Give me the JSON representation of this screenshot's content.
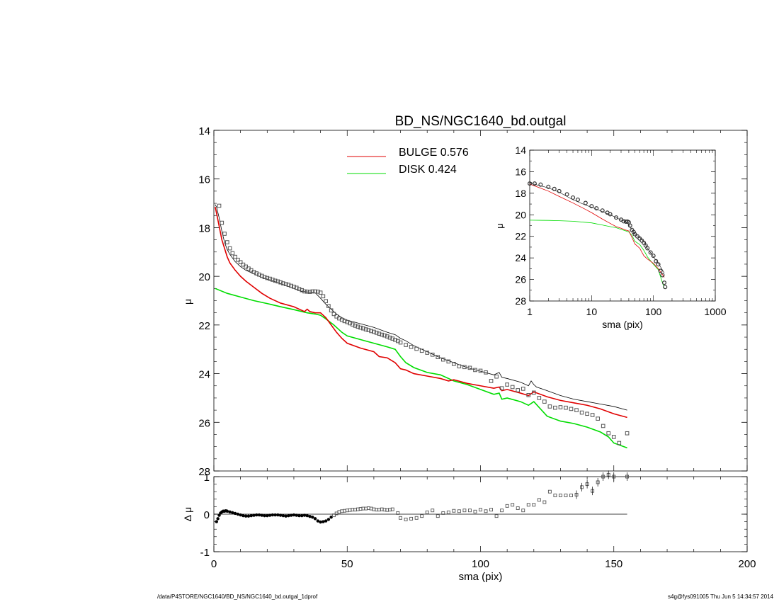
{
  "chart_data": [
    {
      "panel": "main",
      "type": "line",
      "title": "BD_NS/NGC1640_bd.outgal",
      "ylabel": "μ",
      "xlim": [
        0,
        200
      ],
      "ylim": [
        28,
        14
      ],
      "xticks": [
        "0",
        "50",
        "100",
        "150",
        "200"
      ],
      "yticks": [
        "14",
        "16",
        "18",
        "20",
        "22",
        "24",
        "26",
        "28"
      ],
      "legend": {
        "placement": "top-center",
        "entries": [
          {
            "label": "BULGE  0.576",
            "color": "#e00000"
          },
          {
            "label": "DISK  0.424",
            "color": "#00dd00"
          }
        ]
      },
      "series": [
        {
          "name": "data",
          "marker": "square",
          "color": "#000000",
          "x": [
            2,
            3,
            4,
            5,
            6,
            7,
            8,
            9,
            10,
            11,
            12,
            13,
            14,
            15,
            16,
            17,
            18,
            19,
            20,
            21,
            22,
            23,
            24,
            25,
            26,
            27,
            28,
            29,
            30,
            31,
            32,
            33,
            34,
            35,
            36,
            37,
            38,
            39,
            40,
            41,
            42,
            43,
            44,
            45,
            46,
            47,
            48,
            49,
            50,
            51,
            52,
            53,
            54,
            55,
            56,
            57,
            58,
            59,
            60,
            61,
            62,
            63,
            64,
            65,
            66,
            67,
            68,
            69,
            70,
            72,
            74,
            76,
            78,
            80,
            82,
            84,
            86,
            88,
            90,
            92,
            94,
            96,
            98,
            100,
            102,
            104,
            106,
            108,
            110,
            112,
            114,
            116,
            118,
            120,
            122,
            124,
            126,
            128,
            130,
            132,
            134,
            136,
            138,
            140,
            142,
            144,
            146,
            148,
            150,
            152,
            155
          ],
          "y": [
            17.1,
            17.8,
            18.25,
            18.6,
            18.85,
            19.05,
            19.2,
            19.32,
            19.42,
            19.52,
            19.6,
            19.68,
            19.75,
            19.82,
            19.88,
            19.93,
            19.98,
            20.03,
            20.07,
            20.1,
            20.14,
            20.18,
            20.21,
            20.25,
            20.29,
            20.32,
            20.35,
            20.39,
            20.43,
            20.47,
            20.52,
            20.57,
            20.62,
            20.63,
            20.64,
            20.62,
            20.62,
            20.63,
            20.67,
            20.82,
            21.02,
            21.22,
            21.4,
            21.55,
            21.65,
            21.73,
            21.79,
            21.84,
            21.88,
            21.93,
            21.98,
            22.03,
            22.07,
            22.11,
            22.14,
            22.18,
            22.21,
            22.25,
            22.28,
            22.32,
            22.36,
            22.4,
            22.43,
            22.47,
            22.52,
            22.56,
            22.61,
            22.66,
            22.72,
            22.82,
            22.9,
            22.98,
            23.06,
            23.14,
            23.22,
            23.32,
            23.42,
            23.5,
            23.6,
            23.7,
            23.73,
            23.76,
            23.85,
            23.88,
            23.95,
            24.3,
            24.12,
            24.6,
            24.45,
            24.55,
            24.68,
            24.62,
            24.88,
            24.78,
            25.0,
            25.15,
            25.35,
            25.4,
            25.38,
            25.4,
            25.45,
            25.5,
            25.6,
            25.65,
            25.7,
            25.85,
            26.15,
            26.45,
            26.6,
            26.85,
            26.45
          ]
        },
        {
          "name": "model",
          "color": "#000000",
          "x": [
            0.5,
            1,
            2,
            3,
            4,
            5,
            6,
            8,
            10,
            12,
            15,
            18,
            21,
            25,
            30,
            33,
            36,
            38,
            40,
            42,
            44,
            46,
            48,
            50,
            55,
            60,
            65,
            68,
            70,
            72,
            75,
            80,
            85,
            90,
            95,
            100,
            105,
            107,
            108,
            110,
            115,
            118,
            119,
            120,
            121,
            125,
            130,
            135,
            140,
            145,
            150,
            155
          ],
          "y": [
            17.05,
            17.15,
            17.6,
            18.15,
            18.6,
            18.9,
            19.1,
            19.4,
            19.6,
            19.75,
            19.9,
            20.05,
            20.15,
            20.3,
            20.5,
            20.62,
            20.65,
            20.68,
            20.9,
            21.15,
            21.35,
            21.55,
            21.7,
            21.8,
            21.95,
            22.1,
            22.3,
            22.4,
            22.55,
            22.65,
            22.85,
            23.1,
            23.35,
            23.55,
            23.75,
            23.9,
            24.05,
            23.95,
            24.15,
            24.2,
            24.35,
            24.5,
            24.3,
            24.45,
            24.55,
            24.7,
            24.9,
            25.05,
            25.15,
            25.25,
            25.35,
            25.5
          ]
        },
        {
          "name": "bulge",
          "color": "#e00000",
          "x": [
            0.5,
            1,
            2,
            3,
            4,
            5,
            6,
            8,
            10,
            12,
            15,
            18,
            21,
            25,
            30,
            34,
            35,
            36,
            38,
            40,
            42,
            44,
            46,
            48,
            50,
            55,
            60,
            62,
            65,
            68,
            70,
            72,
            75,
            80,
            85,
            88,
            90,
            95,
            100,
            105,
            107,
            108,
            110,
            115,
            118,
            120,
            125,
            130,
            135,
            140,
            145,
            150,
            155
          ],
          "y": [
            17.15,
            17.4,
            17.95,
            18.5,
            18.85,
            19.2,
            19.45,
            19.75,
            20.0,
            20.2,
            20.45,
            20.7,
            20.9,
            21.1,
            21.25,
            21.45,
            21.35,
            21.45,
            21.5,
            21.5,
            21.7,
            22.0,
            22.3,
            22.55,
            22.75,
            22.95,
            23.1,
            23.3,
            23.35,
            23.55,
            23.8,
            23.85,
            24.0,
            24.1,
            24.2,
            24.3,
            24.25,
            24.4,
            24.5,
            24.6,
            24.55,
            24.7,
            24.65,
            24.8,
            24.9,
            24.75,
            24.95,
            25.1,
            25.2,
            25.3,
            25.45,
            25.65,
            25.8
          ]
        },
        {
          "name": "disk",
          "color": "#00dd00",
          "x": [
            0.5,
            5,
            10,
            15,
            20,
            25,
            30,
            35,
            38,
            40,
            42,
            45,
            48,
            50,
            55,
            60,
            65,
            68,
            70,
            72,
            75,
            80,
            85,
            90,
            95,
            100,
            105,
            107,
            108,
            110,
            115,
            118,
            120,
            125,
            130,
            135,
            140,
            145,
            148,
            150,
            155
          ],
          "y": [
            20.5,
            20.7,
            20.85,
            21.0,
            21.12,
            21.25,
            21.37,
            21.5,
            21.55,
            21.6,
            21.75,
            22.0,
            22.3,
            22.45,
            22.6,
            22.75,
            22.9,
            23.0,
            23.3,
            23.55,
            23.75,
            23.95,
            24.05,
            24.3,
            24.45,
            24.65,
            24.85,
            24.8,
            25.05,
            25.0,
            25.15,
            25.3,
            25.15,
            25.75,
            25.95,
            26.05,
            26.2,
            26.4,
            26.6,
            26.85,
            27.05
          ]
        }
      ]
    },
    {
      "panel": "residual",
      "type": "scatter",
      "xlabel": "sma (pix)",
      "ylabel": "Δ μ",
      "xlim": [
        0,
        200
      ],
      "ylim": [
        -1,
        1
      ],
      "yticks": [
        "-1",
        "0",
        "1"
      ],
      "reference_line": 0,
      "series": [
        {
          "name": "residuals",
          "marker": "square",
          "color": "#000000",
          "x": [
            1,
            1.5,
            2,
            2.5,
            3,
            3.5,
            4,
            4.5,
            5,
            6,
            7,
            8,
            9,
            10,
            11,
            12,
            13,
            14,
            15,
            16,
            17,
            18,
            19,
            20,
            21,
            22,
            23,
            24,
            25,
            26,
            27,
            28,
            29,
            30,
            31,
            32,
            33,
            34,
            35,
            36,
            37,
            38,
            39,
            40,
            41,
            42,
            43,
            44,
            45,
            46,
            47,
            48,
            49,
            50,
            51,
            52,
            53,
            54,
            55,
            56,
            57,
            58,
            59,
            60,
            61,
            62,
            63,
            64,
            65,
            66,
            67,
            69,
            70,
            72,
            74,
            76,
            78,
            80,
            82,
            84,
            86,
            88,
            90,
            92,
            94,
            96,
            98,
            100,
            102,
            104,
            106,
            108,
            110,
            112,
            114,
            116,
            118,
            120,
            122,
            124,
            126,
            128,
            130,
            132,
            134,
            136,
            138,
            140,
            142,
            144,
            146,
            148,
            150,
            155
          ],
          "y": [
            -0.2,
            -0.12,
            -0.03,
            0.03,
            0.06,
            0.08,
            0.08,
            0.09,
            0.08,
            0.06,
            0.04,
            0.02,
            0.0,
            -0.02,
            -0.04,
            -0.05,
            -0.05,
            -0.04,
            -0.03,
            -0.02,
            -0.02,
            -0.03,
            -0.04,
            -0.04,
            -0.03,
            -0.02,
            -0.02,
            -0.02,
            -0.03,
            -0.04,
            -0.05,
            -0.04,
            -0.03,
            -0.02,
            -0.03,
            -0.04,
            -0.04,
            -0.03,
            -0.04,
            -0.06,
            -0.08,
            -0.12,
            -0.18,
            -0.21,
            -0.2,
            -0.18,
            -0.14,
            -0.08,
            -0.03,
            0.02,
            0.06,
            0.08,
            0.09,
            0.1,
            0.11,
            0.12,
            0.12,
            0.13,
            0.14,
            0.15,
            0.15,
            0.16,
            0.15,
            0.13,
            0.12,
            0.12,
            0.13,
            0.12,
            0.11,
            0.12,
            0.13,
            0.03,
            -0.1,
            -0.14,
            -0.12,
            -0.1,
            -0.05,
            0.05,
            0.1,
            -0.05,
            0.03,
            0.05,
            0.09,
            0.08,
            0.1,
            0.1,
            0.07,
            0.12,
            0.08,
            0.12,
            -0.05,
            0.1,
            0.22,
            0.25,
            0.16,
            0.1,
            0.25,
            0.25,
            0.38,
            0.32,
            0.6,
            0.5,
            0.5,
            0.5,
            0.5,
            0.52,
            0.72,
            0.8,
            0.62,
            0.85,
            1.0,
            1.05,
            1.0,
            1.0
          ]
        }
      ]
    },
    {
      "panel": "inset",
      "type": "line",
      "xlabel": "sma (pix)",
      "ylabel": "μ",
      "xscale": "log",
      "xlim": [
        1,
        1000
      ],
      "ylim": [
        28,
        14
      ],
      "xticks": [
        "1",
        "10",
        "100",
        "1000"
      ],
      "yticks": [
        "14",
        "16",
        "18",
        "20",
        "22",
        "24",
        "26",
        "28"
      ],
      "series": [
        {
          "name": "data",
          "marker": "circle",
          "color": "#000000",
          "x": [
            1,
            1.2,
            1.5,
            2,
            2.5,
            3,
            4,
            5,
            6,
            8,
            10,
            12,
            15,
            18,
            20,
            25,
            30,
            33,
            36,
            38,
            40,
            42,
            45,
            48,
            50,
            55,
            60,
            65,
            70,
            75,
            80,
            90,
            100,
            110,
            120,
            130,
            140,
            150,
            155
          ],
          "y": [
            17.1,
            17.1,
            17.2,
            17.4,
            17.6,
            17.8,
            18.1,
            18.4,
            18.6,
            18.9,
            19.2,
            19.4,
            19.6,
            19.8,
            19.95,
            20.25,
            20.45,
            20.6,
            20.64,
            20.63,
            20.7,
            21.0,
            21.4,
            21.6,
            21.8,
            22.0,
            22.2,
            22.4,
            22.6,
            22.85,
            23.1,
            23.5,
            23.8,
            24.3,
            24.6,
            25.2,
            25.6,
            26.3,
            26.7
          ]
        },
        {
          "name": "model",
          "color": "#000000",
          "x": [
            1,
            2,
            3,
            5,
            8,
            10,
            15,
            20,
            25,
            30,
            35,
            40,
            45,
            50,
            60,
            70,
            80,
            100,
            120,
            150
          ],
          "y": [
            17.05,
            17.5,
            17.9,
            18.6,
            19.1,
            19.3,
            19.7,
            20.0,
            20.25,
            20.5,
            20.6,
            20.9,
            21.4,
            21.8,
            22.1,
            22.5,
            23.1,
            23.9,
            24.5,
            25.4
          ]
        },
        {
          "name": "bulge",
          "color": "#e00000",
          "x": [
            1,
            2,
            3,
            5,
            8,
            10,
            15,
            20,
            25,
            30,
            35,
            40,
            45,
            50,
            60,
            70,
            80,
            100,
            120,
            150
          ],
          "y": [
            17.15,
            17.8,
            18.3,
            18.9,
            19.5,
            19.8,
            20.4,
            20.8,
            21.1,
            21.25,
            21.4,
            21.5,
            22.1,
            22.7,
            23.1,
            23.8,
            24.1,
            24.5,
            25.0,
            25.8
          ]
        },
        {
          "name": "disk",
          "color": "#00dd00",
          "x": [
            1,
            2,
            3,
            5,
            8,
            10,
            15,
            20,
            25,
            30,
            35,
            40,
            45,
            50,
            60,
            70,
            80,
            100,
            120,
            150
          ],
          "y": [
            20.5,
            20.52,
            20.55,
            20.6,
            20.7,
            20.75,
            20.95,
            21.1,
            21.2,
            21.35,
            21.48,
            21.6,
            21.9,
            22.45,
            22.75,
            23.3,
            23.9,
            24.6,
            25.1,
            26.85
          ]
        }
      ]
    }
  ],
  "footer": {
    "left": "/data/P4STORE/NGC1640/BD_NS/NGC1640_bd.outgal_1dprof",
    "right": "s4g@fys091005  Thu Jun  5 14:34:57 2014"
  }
}
